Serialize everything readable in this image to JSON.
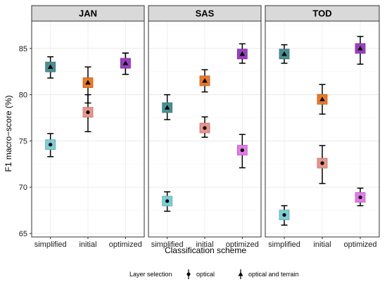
{
  "chart_data": {
    "type": "scatter",
    "facets": [
      "JAN",
      "SAS",
      "TOD"
    ],
    "categories": [
      "simplified",
      "initial",
      "optimized"
    ],
    "xlabel": "Classification scheme",
    "ylabel": "F1 macro−score (%)",
    "ylim": [
      65,
      87.5
    ],
    "yticks": [
      65,
      70,
      75,
      80,
      85
    ],
    "grid": true,
    "legend": {
      "title": "Layer selection",
      "position": "bottom",
      "entries": [
        {
          "label": "optical",
          "marker": "circle"
        },
        {
          "label": "optical and terrain",
          "marker": "triangle"
        }
      ]
    },
    "colors": {
      "simplified": {
        "optical": "#7fcdd4",
        "terrain": "#4a8f93"
      },
      "initial": {
        "optical": "#e8958a",
        "terrain": "#e87a2a"
      },
      "optimized": {
        "optical": "#e27ae8",
        "terrain": "#9a3fc0"
      }
    },
    "series": [
      {
        "name": "optical",
        "marker": "circle",
        "points": [
          {
            "facet": "JAN",
            "category": "simplified",
            "value": 74.6,
            "low": 73.3,
            "high": 75.8
          },
          {
            "facet": "JAN",
            "category": "initial",
            "value": 78.1,
            "low": 76.0,
            "high": 80.0
          },
          {
            "facet": "JAN",
            "category": "optimized",
            "value": 83.4,
            "low": 82.2,
            "high": 84.5
          },
          {
            "facet": "SAS",
            "category": "simplified",
            "value": 68.5,
            "low": 67.4,
            "high": 69.5
          },
          {
            "facet": "SAS",
            "category": "initial",
            "value": 76.4,
            "low": 75.4,
            "high": 77.6
          },
          {
            "facet": "SAS",
            "category": "optimized",
            "value": 74.0,
            "low": 72.1,
            "high": 75.7
          },
          {
            "facet": "TOD",
            "category": "simplified",
            "value": 67.0,
            "low": 65.9,
            "high": 68.0
          },
          {
            "facet": "TOD",
            "category": "initial",
            "value": 72.6,
            "low": 70.4,
            "high": 74.5
          },
          {
            "facet": "TOD",
            "category": "optimized",
            "value": 68.9,
            "low": 68.0,
            "high": 69.9
          }
        ]
      },
      {
        "name": "optical and terrain",
        "marker": "triangle",
        "points": [
          {
            "facet": "JAN",
            "category": "simplified",
            "value": 83.0,
            "low": 81.8,
            "high": 84.1
          },
          {
            "facet": "JAN",
            "category": "initial",
            "value": 81.3,
            "low": 79.1,
            "high": 83.0
          },
          {
            "facet": "JAN",
            "category": "optimized",
            "value": 83.4,
            "low": 82.2,
            "high": 84.5
          },
          {
            "facet": "SAS",
            "category": "simplified",
            "value": 78.6,
            "low": 77.3,
            "high": 80.0
          },
          {
            "facet": "SAS",
            "category": "initial",
            "value": 81.5,
            "low": 80.3,
            "high": 82.7
          },
          {
            "facet": "SAS",
            "category": "optimized",
            "value": 84.4,
            "low": 83.4,
            "high": 85.5
          },
          {
            "facet": "TOD",
            "category": "simplified",
            "value": 84.4,
            "low": 83.4,
            "high": 85.4
          },
          {
            "facet": "TOD",
            "category": "initial",
            "value": 79.5,
            "low": 77.9,
            "high": 81.1
          },
          {
            "facet": "TOD",
            "category": "optimized",
            "value": 85.0,
            "low": 83.3,
            "high": 86.3
          }
        ]
      }
    ]
  }
}
